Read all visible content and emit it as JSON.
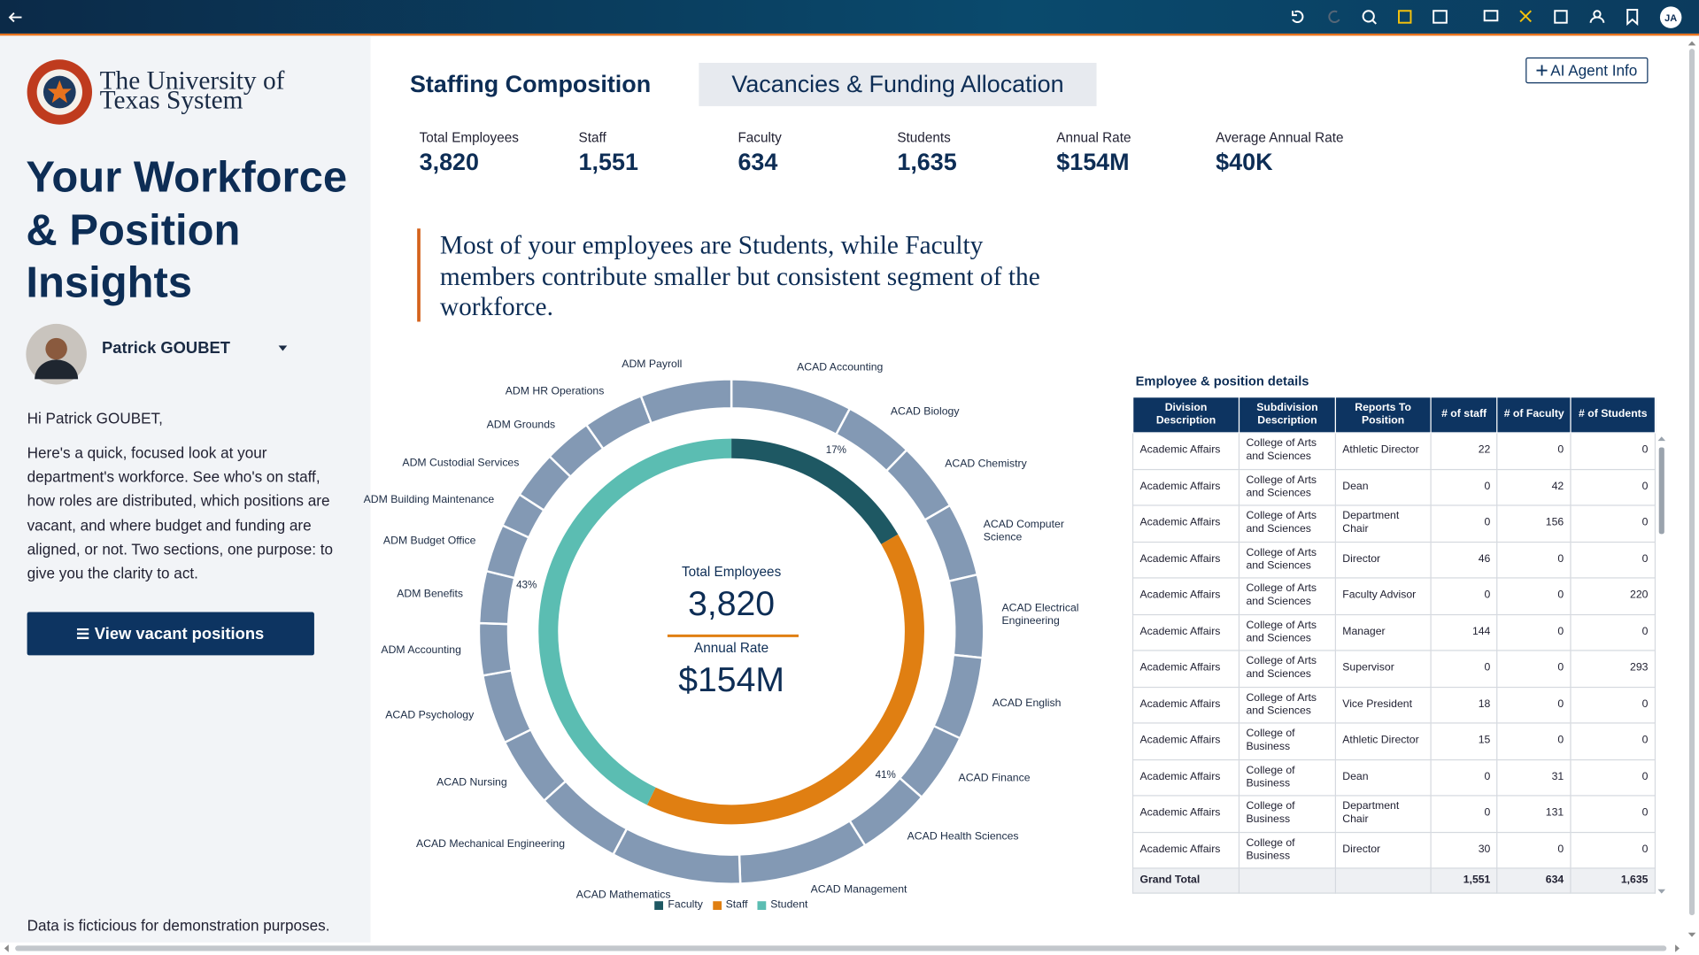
{
  "header": {
    "avatar_initials": "JA"
  },
  "sidebar": {
    "logo_text": [
      "The University of",
      "Texas System"
    ],
    "headline": "Your Workforce & Position Insights",
    "user_name": "Patrick GOUBET",
    "greeting": "Hi Patrick GOUBET,",
    "intro": "Here's a quick, focused look at your department's workforce. See who's on staff, how roles are distributed, which positions are vacant, and where budget and funding are aligned, or not. Two sections, one purpose: to give you the clarity to act.",
    "button": "View vacant positions",
    "footnote": "Data is ficticious for demonstration purposes."
  },
  "tabs": [
    "Staffing Composition",
    "Vacancies & Funding Allocation"
  ],
  "ai_button": "AI Agent Info",
  "kpis": [
    {
      "label": "Total Employees",
      "value": "3,820"
    },
    {
      "label": "Staff",
      "value": "1,551"
    },
    {
      "label": "Faculty",
      "value": "634"
    },
    {
      "label": "Students",
      "value": "1,635"
    },
    {
      "label": "Annual Rate",
      "value": "$154M"
    },
    {
      "label": "Average Annual Rate",
      "value": "$40K"
    }
  ],
  "insight": "Most of your employees are Students, while Faculty members contribute smaller but consistent segment of the workforce.",
  "chart_data": {
    "type": "donut",
    "categories": [
      "ACAD Accounting",
      "ACAD Biology",
      "ACAD Chemistry",
      "ACAD Computer Science",
      "ACAD Electrical Engineering",
      "ACAD English",
      "ACAD Finance",
      "ACAD Health Sciences",
      "ACAD Management",
      "ACAD Mathematics",
      "ACAD Mechanical Engineering",
      "ACAD Nursing",
      "ACAD Psychology",
      "ADM Accounting",
      "ADM Benefits",
      "ADM Budget Office",
      "ADM Building Maintenance",
      "ADM Custodial Services",
      "ADM Grounds",
      "ADM HR Operations",
      "ADM Payroll"
    ],
    "values": [
      297,
      170,
      170,
      180,
      202,
      202,
      170,
      180,
      318,
      318,
      212,
      170,
      170,
      127,
      127,
      117,
      85,
      117,
      117,
      149,
      223
    ],
    "color": "#8399b4",
    "inner": {
      "categories": [
        "Faculty",
        "Staff",
        "Student"
      ],
      "values": [
        634,
        1551,
        1635
      ],
      "value_labels": [
        "17%",
        "41%",
        "43%"
      ],
      "colors": [
        "#1e5863",
        "#e07f12",
        "#5bbdb2"
      ]
    },
    "center": {
      "label_1": "Total Employees",
      "value_1": "3,820",
      "label_2": "Annual Rate",
      "value_2": "$154M"
    }
  },
  "table": {
    "title": "Employee & position details",
    "columns": [
      "Division Description",
      "Subdivision Description",
      "Reports To Position",
      "# of staff",
      "# of Faculty",
      "# of Students"
    ],
    "rows": [
      [
        "Academic Affairs",
        "College of Arts and Sciences",
        "Athletic Director",
        22,
        0,
        0
      ],
      [
        "Academic Affairs",
        "College of Arts and Sciences",
        "Dean",
        0,
        42,
        0
      ],
      [
        "Academic Affairs",
        "College of Arts and Sciences",
        "Department Chair",
        0,
        156,
        0
      ],
      [
        "Academic Affairs",
        "College of Arts and Sciences",
        "Director",
        46,
        0,
        0
      ],
      [
        "Academic Affairs",
        "College of Arts and Sciences",
        "Faculty Advisor",
        0,
        0,
        220
      ],
      [
        "Academic Affairs",
        "College of Arts and Sciences",
        "Manager",
        144,
        0,
        0
      ],
      [
        "Academic Affairs",
        "College of Arts and Sciences",
        "Supervisor",
        0,
        0,
        293
      ],
      [
        "Academic Affairs",
        "College of Arts and Sciences",
        "Vice President",
        18,
        0,
        0
      ],
      [
        "Academic Affairs",
        "College of Business",
        "Athletic Director",
        15,
        0,
        0
      ],
      [
        "Academic Affairs",
        "College of Business",
        "Dean",
        0,
        31,
        0
      ],
      [
        "Academic Affairs",
        "College of Business",
        "Department Chair",
        0,
        131,
        0
      ],
      [
        "Academic Affairs",
        "College of Business",
        "Director",
        30,
        0,
        0
      ]
    ],
    "total": {
      "label": "Grand Total",
      "values": [
        "1,551",
        "634",
        "1,635"
      ]
    }
  }
}
